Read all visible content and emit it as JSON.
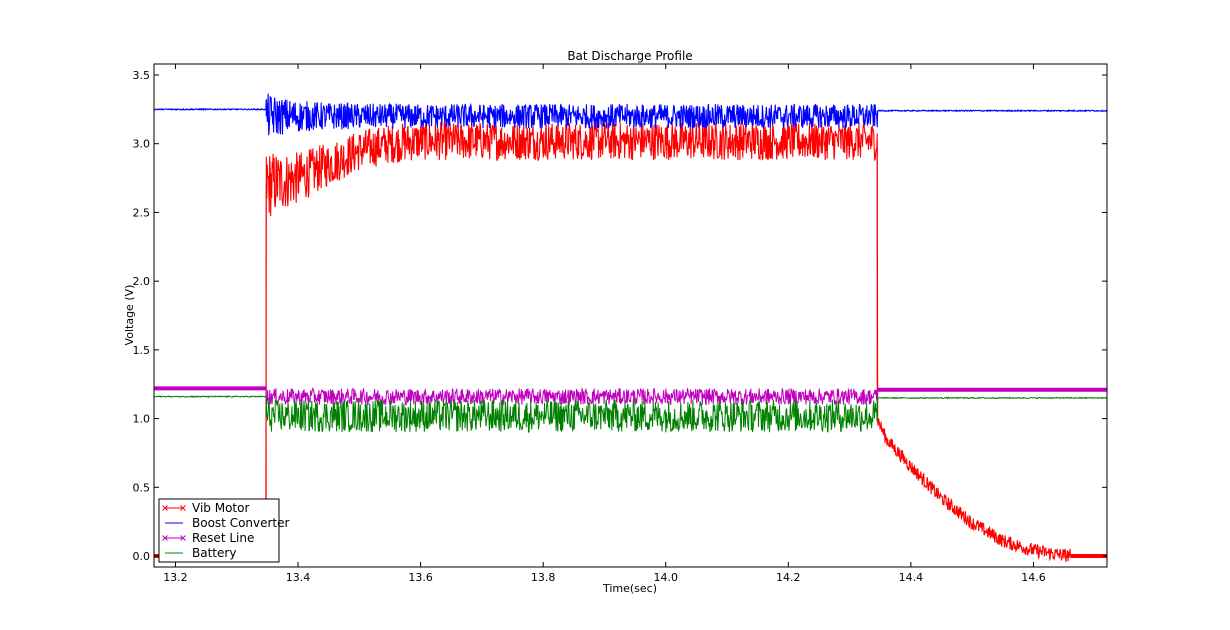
{
  "chart_data": {
    "type": "line",
    "title": "Bat Discharge Profile",
    "xlabel": "Time(sec)",
    "ylabel": "Voltage (V)",
    "xlim": [
      13.165,
      14.72
    ],
    "ylim": [
      -0.08,
      3.58
    ],
    "xticks": [
      "13.2",
      "13.4",
      "13.6",
      "13.8",
      "14.0",
      "14.2",
      "14.4",
      "14.6"
    ],
    "yticks": [
      "0.0",
      "0.5",
      "1.0",
      "1.5",
      "2.0",
      "2.5",
      "3.0",
      "3.5"
    ],
    "legend_position": "lower-left",
    "grid": false,
    "series": [
      {
        "name": "Vib Motor",
        "color": "#ff0000",
        "marker": "x",
        "points": [
          [
            13.165,
            0.0
          ],
          [
            13.348,
            0.0
          ],
          [
            13.348,
            2.7
          ],
          [
            13.4,
            2.75
          ],
          [
            13.45,
            2.85
          ],
          [
            13.5,
            2.95
          ],
          [
            13.55,
            3.0
          ],
          [
            13.6,
            3.02
          ],
          [
            13.7,
            3.02
          ],
          [
            13.8,
            3.02
          ],
          [
            14.0,
            3.02
          ],
          [
            14.2,
            3.02
          ],
          [
            14.345,
            3.02
          ],
          [
            14.345,
            1.0
          ],
          [
            14.36,
            0.85
          ],
          [
            14.4,
            0.65
          ],
          [
            14.45,
            0.42
          ],
          [
            14.5,
            0.24
          ],
          [
            14.55,
            0.11
          ],
          [
            14.6,
            0.04
          ],
          [
            14.65,
            0.005
          ],
          [
            14.72,
            0.0
          ]
        ]
      },
      {
        "name": "Boost Converter",
        "color": "#0000ff",
        "marker": "none",
        "points": [
          [
            13.165,
            3.25
          ],
          [
            13.348,
            3.25
          ],
          [
            13.348,
            3.2
          ],
          [
            13.45,
            3.2
          ],
          [
            13.6,
            3.2
          ],
          [
            14.0,
            3.2
          ],
          [
            14.345,
            3.2
          ],
          [
            14.345,
            3.24
          ],
          [
            14.72,
            3.24
          ]
        ]
      },
      {
        "name": "Reset Line",
        "color": "#bf00bf",
        "marker": "x",
        "points": [
          [
            13.165,
            1.22
          ],
          [
            13.348,
            1.22
          ],
          [
            13.348,
            1.16
          ],
          [
            14.345,
            1.16
          ],
          [
            14.345,
            1.21
          ],
          [
            14.72,
            1.21
          ]
        ]
      },
      {
        "name": "Battery",
        "color": "#008000",
        "marker": "none",
        "points": [
          [
            13.165,
            1.16
          ],
          [
            13.348,
            1.16
          ],
          [
            13.348,
            1.02
          ],
          [
            14.345,
            1.02
          ],
          [
            14.345,
            1.15
          ],
          [
            14.72,
            1.15
          ]
        ]
      }
    ]
  }
}
